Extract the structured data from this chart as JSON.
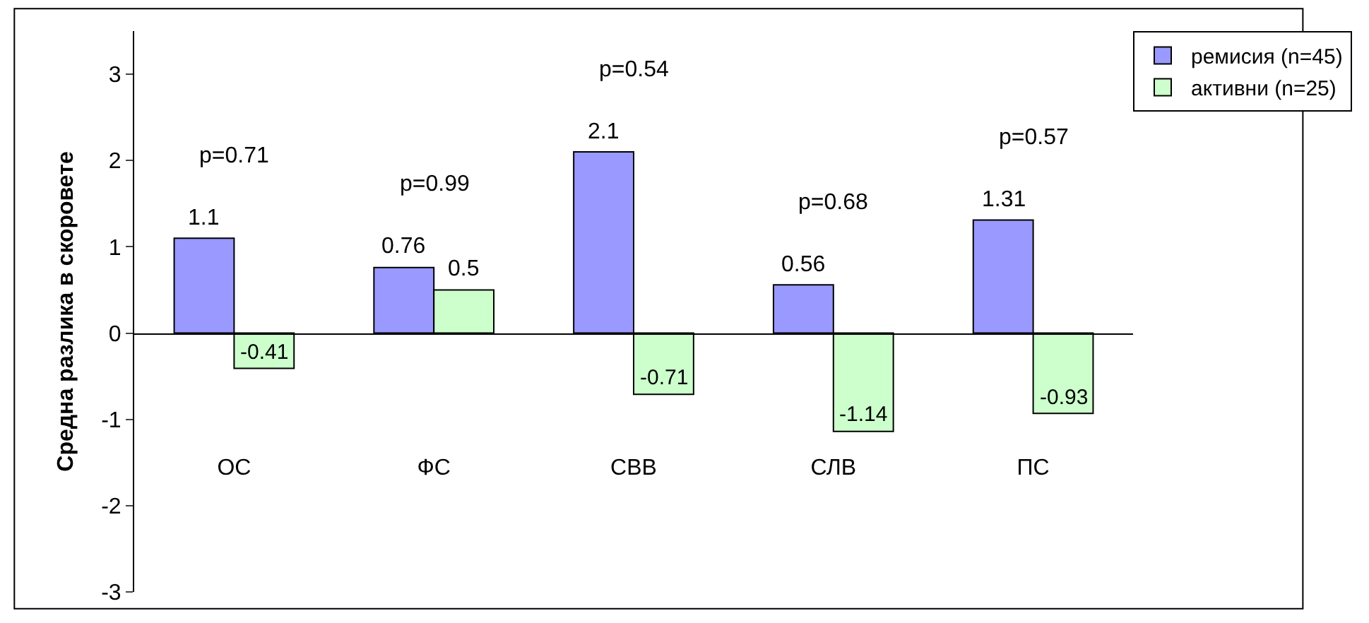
{
  "chart_data": {
    "type": "bar",
    "ylabel": "Средна разлика в скоровете",
    "categories": [
      "ОС",
      "ФС",
      "СВВ",
      "СЛВ",
      "ПС"
    ],
    "series": [
      {
        "name": "ремисия (n=45)",
        "color": "#9999ff",
        "values": [
          1.1,
          0.76,
          2.1,
          0.56,
          1.31
        ]
      },
      {
        "name": "активни (n=25)",
        "color": "#ccffcc",
        "values": [
          -0.41,
          0.5,
          -0.71,
          -1.14,
          -0.93
        ]
      }
    ],
    "ylim": [
      -3,
      3.5
    ],
    "yticks": [
      -3,
      -2,
      -1,
      0,
      1,
      2,
      3
    ],
    "data_labels": true,
    "legend": "top right",
    "annotations": [
      "p=0.71",
      "p=0.99",
      "p=0.54",
      "p=0.68",
      "p=0.57"
    ]
  }
}
